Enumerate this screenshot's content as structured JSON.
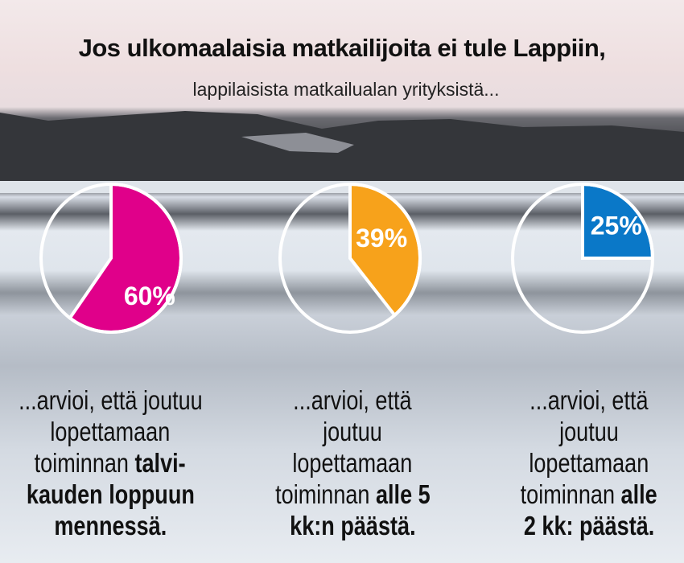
{
  "title": "Jos ulkomaalaisia matkailijoita ei tule Lappiin,",
  "subtitle": "lappilaisista matkailualan yrityksistä...",
  "chart_data": [
    {
      "type": "pie",
      "values": [
        60
      ],
      "labels": [
        "60%"
      ],
      "color": "#e0008a"
    },
    {
      "type": "pie",
      "values": [
        39
      ],
      "labels": [
        "39%"
      ],
      "color": "#f7a21b"
    },
    {
      "type": "pie",
      "values": [
        25
      ],
      "labels": [
        "25%"
      ],
      "color": "#0a78c8"
    }
  ],
  "captions": [
    {
      "lines": [
        {
          "r": "...arvioi, että joutuu",
          "b": ""
        },
        {
          "r": "lopettamaan",
          "b": ""
        },
        {
          "r": "toiminnan ",
          "b": "talvi-"
        },
        {
          "r": "",
          "b": "kauden loppuun"
        },
        {
          "r": "",
          "b": "mennessä."
        }
      ]
    },
    {
      "lines": [
        {
          "r": "...arvioi, että",
          "b": ""
        },
        {
          "r": "joutuu",
          "b": ""
        },
        {
          "r": "lopettamaan",
          "b": ""
        },
        {
          "r": "toiminnan ",
          "b": "alle 5"
        },
        {
          "r": "",
          "b": "kk:n päästä."
        }
      ]
    },
    {
      "lines": [
        {
          "r": "...arvioi, että",
          "b": ""
        },
        {
          "r": "joutuu",
          "b": ""
        },
        {
          "r": "lopettamaan",
          "b": ""
        },
        {
          "r": "toiminnan ",
          "b": "alle"
        },
        {
          "r": "",
          "b": "2 kk: päästä."
        }
      ]
    }
  ]
}
